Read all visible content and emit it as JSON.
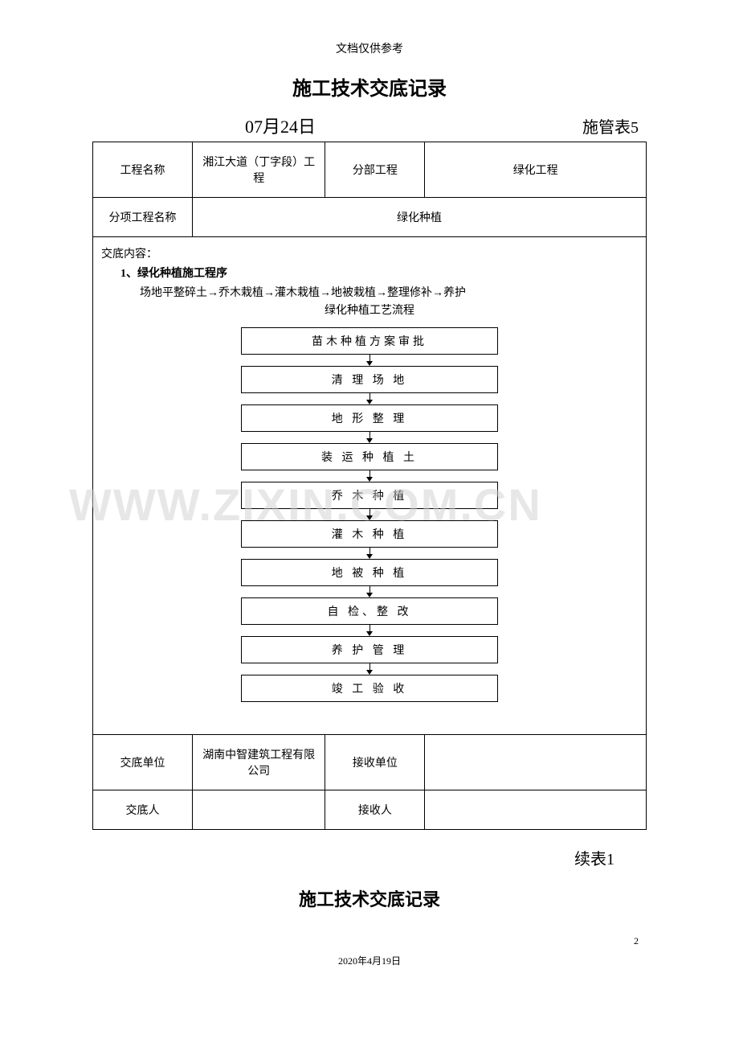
{
  "header_note": "文档仅供参考",
  "title": "施工技术交底记录",
  "date": "07月24日",
  "form_number": "施管表5",
  "table": {
    "row1": {
      "label1": "工程名称",
      "value1": "湘江大道（丁字段）工程",
      "label2": "分部工程",
      "value2": "绿化工程"
    },
    "row2": {
      "label1": "分项工程名称",
      "value1": "绿化种植"
    },
    "content": {
      "header": "交底内容：",
      "section1_title": "1、绿化种植施工程序",
      "section1_text": "场地平整碎土→乔木栽植→灌木栽植→地被栽植→整理修补→养护",
      "flow_title": "绿化种植工艺流程",
      "flow_steps": [
        "苗木种植方案审批",
        "清 理 场 地",
        "地 形 整 理",
        "装 运 种 植 土",
        "乔 木 种 植",
        "灌 木 种 植",
        "地 被 种 植",
        "自 检、整 改",
        "养 护 管 理",
        "竣 工 验 收"
      ]
    },
    "row_bottom1": {
      "label1": "交底单位",
      "value1": "湖南中智建筑工程有限公司",
      "label2": "接收单位",
      "value2": ""
    },
    "row_bottom2": {
      "label1": "交底人",
      "value1": "",
      "label2": "接收人",
      "value2": ""
    }
  },
  "continue_label": "续表1",
  "title2": "施工技术交底记录",
  "page_number": "2",
  "footer_date": "2020年4月19日",
  "watermark": "WWW.ZIXIN.COM.CN",
  "colors": {
    "text": "#000000",
    "border": "#000000",
    "background": "#ffffff",
    "watermark": "#d0d0d0"
  }
}
